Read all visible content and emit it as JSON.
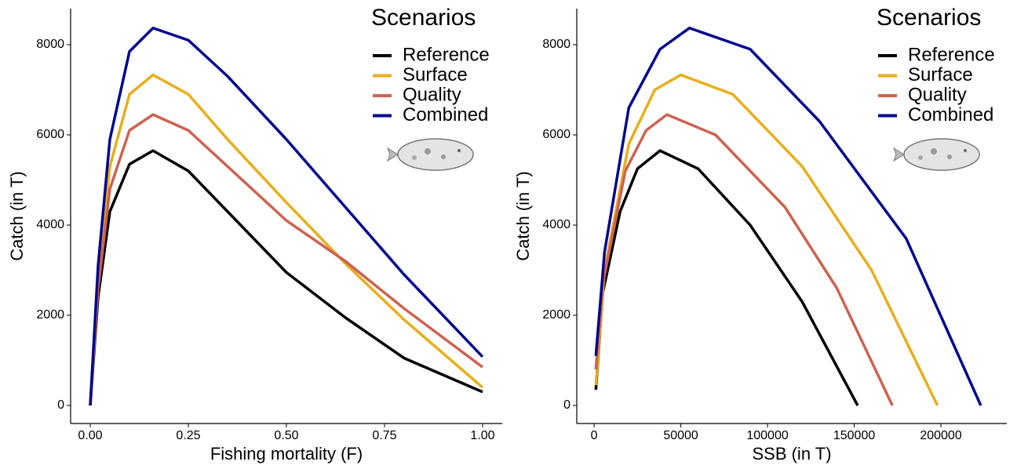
{
  "chart_data": [
    {
      "type": "line",
      "x_label": "Fishing mortality (F)",
      "y_label": "Catch (in T)",
      "legend_title": "Scenarios",
      "xlim": [
        -0.05,
        1.05
      ],
      "ylim": [
        -400,
        8800
      ],
      "xticks": [
        {
          "value": 0,
          "label": "0.00"
        },
        {
          "value": 0.25,
          "label": "0.25"
        },
        {
          "value": 0.5,
          "label": "0.50"
        },
        {
          "value": 0.75,
          "label": "0.75"
        },
        {
          "value": 1,
          "label": "1.00"
        }
      ],
      "yticks": [
        0,
        2000,
        4000,
        6000,
        8000
      ],
      "series": [
        {
          "name": "Reference",
          "color": "#000000",
          "x": [
            0,
            0.02,
            0.05,
            0.1,
            0.16,
            0.25,
            0.35,
            0.5,
            0.65,
            0.8,
            1.0
          ],
          "values": [
            0,
            2400,
            4300,
            5350,
            5650,
            5200,
            4300,
            2950,
            1950,
            1050,
            300
          ]
        },
        {
          "name": "Surface",
          "color": "#e8ae1c",
          "x": [
            0,
            0.02,
            0.05,
            0.1,
            0.16,
            0.25,
            0.35,
            0.5,
            0.65,
            0.8,
            1.0
          ],
          "values": [
            0,
            2800,
            5300,
            6900,
            7330,
            6900,
            5900,
            4500,
            3150,
            1900,
            400
          ]
        },
        {
          "name": "Quality",
          "color": "#cd6251",
          "x": [
            0,
            0.02,
            0.05,
            0.1,
            0.16,
            0.25,
            0.35,
            0.5,
            0.65,
            0.8,
            1.0
          ],
          "values": [
            0,
            2600,
            4800,
            6100,
            6450,
            6100,
            5300,
            4100,
            3200,
            2150,
            850
          ]
        },
        {
          "name": "Combined",
          "color": "#00078f",
          "x": [
            0,
            0.02,
            0.05,
            0.1,
            0.16,
            0.25,
            0.35,
            0.5,
            0.65,
            0.8,
            1.0
          ],
          "values": [
            0,
            3100,
            5900,
            7850,
            8370,
            8100,
            7300,
            5900,
            4400,
            2900,
            1080
          ]
        }
      ]
    },
    {
      "type": "line",
      "x_label": "SSB (in T)",
      "y_label": "Catch (in T)",
      "legend_title": "Scenarios",
      "xlim": [
        -10000,
        238000
      ],
      "ylim": [
        -400,
        8800
      ],
      "xticks": [
        0,
        50000,
        100000,
        150000,
        200000
      ],
      "yticks": [
        0,
        2000,
        4000,
        6000,
        8000
      ],
      "series": [
        {
          "name": "Reference",
          "color": "#000000",
          "x": [
            1000,
            5000,
            15000,
            25000,
            38000,
            60000,
            90000,
            120000,
            152000
          ],
          "values": [
            350,
            2500,
            4300,
            5250,
            5650,
            5250,
            4000,
            2300,
            0
          ]
        },
        {
          "name": "Surface",
          "color": "#e8ae1c",
          "x": [
            1000,
            6000,
            20000,
            35000,
            50000,
            80000,
            120000,
            160000,
            198000
          ],
          "values": [
            450,
            3000,
            5800,
            7000,
            7330,
            6900,
            5300,
            3000,
            0
          ]
        },
        {
          "name": "Quality",
          "color": "#cd6251",
          "x": [
            1000,
            5000,
            18000,
            30000,
            42000,
            70000,
            110000,
            140000,
            172000
          ],
          "values": [
            800,
            2700,
            5200,
            6100,
            6450,
            6000,
            4400,
            2600,
            0
          ]
        },
        {
          "name": "Combined",
          "color": "#00078f",
          "x": [
            1000,
            6000,
            20000,
            38000,
            55000,
            90000,
            130000,
            180000,
            223000
          ],
          "values": [
            1100,
            3400,
            6600,
            7900,
            8370,
            7900,
            6300,
            3700,
            0
          ]
        }
      ]
    }
  ]
}
